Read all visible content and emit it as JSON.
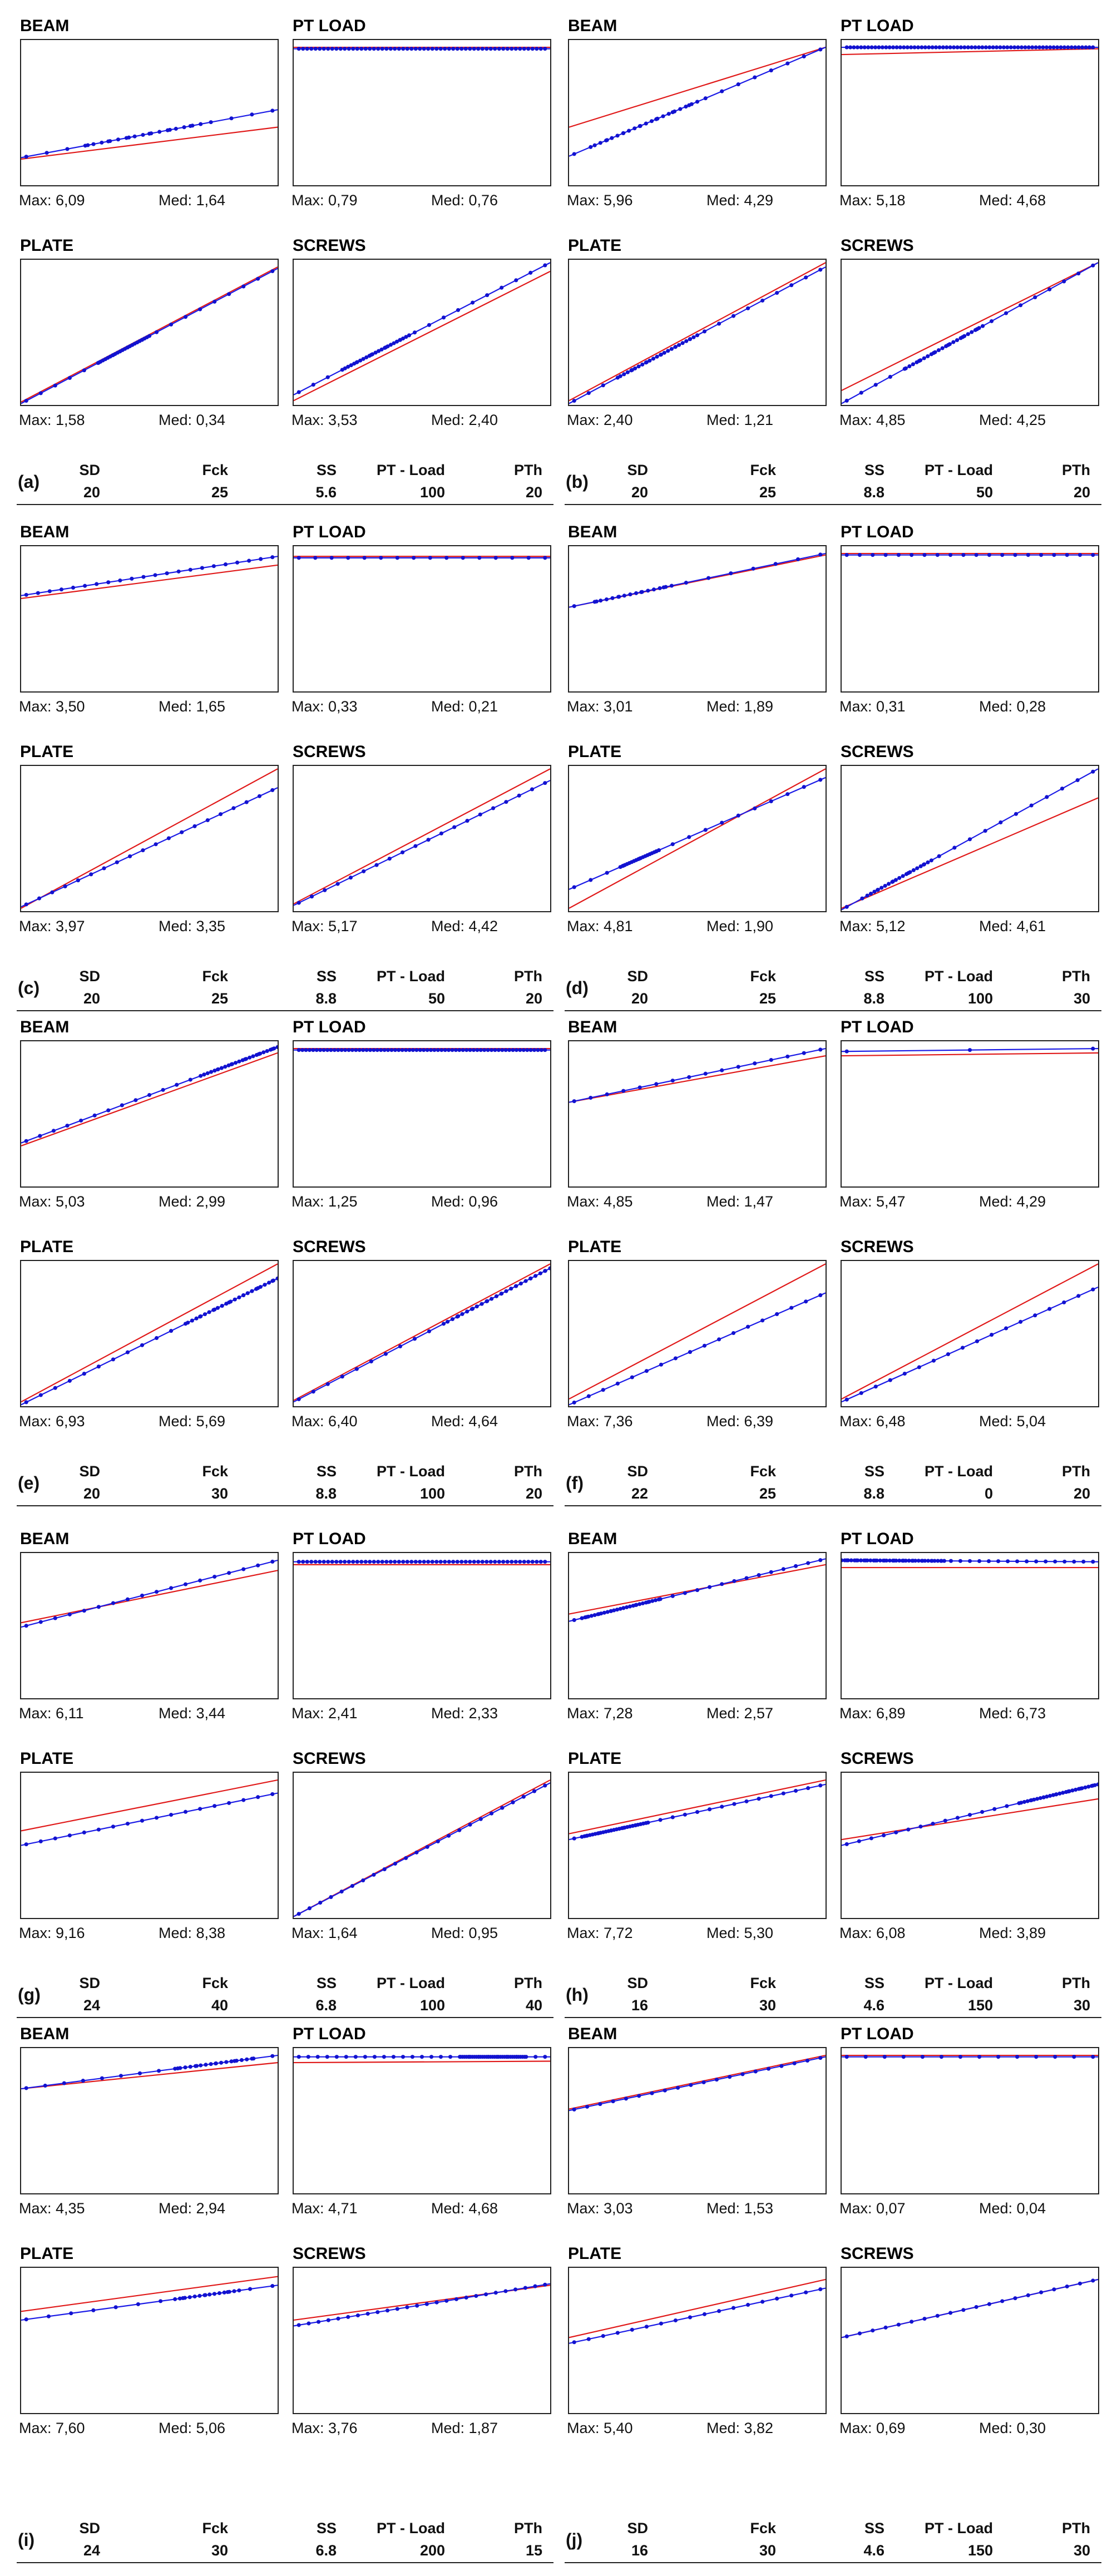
{
  "colors": {
    "fit_line": "#e01818",
    "data_line": "#1a1ae6",
    "marker": "#1212d0",
    "frame": "#222222"
  },
  "param_headers": [
    "SD",
    "Fck",
    "SS",
    "PT - Load",
    "PTh"
  ],
  "max_prefix": "Max:",
  "med_prefix": "Med:",
  "chart_data": [
    {
      "label": "(a)",
      "params": [
        "20",
        "25",
        "5.6",
        "100",
        "20"
      ],
      "subplots": [
        {
          "name": "BEAM",
          "type": "line",
          "max": "6,09",
          "med": "1,64",
          "red": [
            0.82,
            0.6
          ],
          "blue": [
            0.81,
            0.48
          ],
          "npts": 28,
          "dense": [
            0.25,
            0.7
          ]
        },
        {
          "name": "PT LOAD",
          "type": "line",
          "max": "0,79",
          "med": "0,76",
          "red": [
            0.05,
            0.05
          ],
          "blue": [
            0.06,
            0.06
          ],
          "npts": 60,
          "dense": [
            0,
            1
          ]
        },
        {
          "name": "PLATE",
          "type": "line",
          "max": "1,58",
          "med": "0,34",
          "red": [
            0.98,
            0.05
          ],
          "blue": [
            0.99,
            0.06
          ],
          "npts": 40,
          "dense": [
            0.3,
            0.5
          ]
        },
        {
          "name": "SCREWS",
          "type": "line",
          "max": "3,53",
          "med": "2,40",
          "red": [
            0.97,
            0.08
          ],
          "blue": [
            0.93,
            0.02
          ],
          "npts": 40,
          "dense": [
            0.2,
            0.45
          ]
        }
      ]
    },
    {
      "label": "(b)",
      "params": [
        "20",
        "25",
        "8.8",
        "50",
        "20"
      ],
      "subplots": [
        {
          "name": "BEAM",
          "type": "line",
          "max": "5,96",
          "med": "4,29",
          "red": [
            0.6,
            0.05
          ],
          "blue": [
            0.8,
            0.05
          ],
          "npts": 35,
          "dense": [
            0.1,
            0.5
          ]
        },
        {
          "name": "PT LOAD",
          "type": "line",
          "max": "5,18",
          "med": "4,68",
          "red": [
            0.1,
            0.06
          ],
          "blue": [
            0.05,
            0.05
          ],
          "npts": 70,
          "dense": [
            0,
            1
          ]
        },
        {
          "name": "PLATE",
          "type": "line",
          "max": "2,40",
          "med": "1,21",
          "red": [
            0.97,
            0.02
          ],
          "blue": [
            0.99,
            0.05
          ],
          "npts": 40,
          "dense": [
            0.2,
            0.5
          ]
        },
        {
          "name": "SCREWS",
          "type": "line",
          "max": "4,85",
          "med": "4,25",
          "red": [
            0.9,
            0.02
          ],
          "blue": [
            0.99,
            0.02
          ],
          "npts": 40,
          "dense": [
            0.25,
            0.55
          ]
        }
      ]
    },
    {
      "label": "(c)",
      "params": [
        "20",
        "25",
        "8.8",
        "50",
        "20"
      ],
      "subplots": [
        {
          "name": "BEAM",
          "type": "line",
          "max": "3,50",
          "med": "1,65",
          "red": [
            0.36,
            0.13
          ],
          "blue": [
            0.34,
            0.07
          ],
          "npts": 22,
          "dense": [
            0,
            1
          ]
        },
        {
          "name": "PT LOAD",
          "type": "line",
          "max": "0,33",
          "med": "0,21",
          "red": [
            0.07,
            0.07
          ],
          "blue": [
            0.08,
            0.08
          ],
          "npts": 16,
          "dense": [
            0,
            1
          ]
        },
        {
          "name": "PLATE",
          "type": "line",
          "max": "3,97",
          "med": "3,35",
          "red": [
            0.98,
            0.02
          ],
          "blue": [
            0.97,
            0.15
          ],
          "npts": 20,
          "dense": [
            0,
            1
          ]
        },
        {
          "name": "SCREWS",
          "type": "line",
          "max": "5,17",
          "med": "4,42",
          "red": [
            0.95,
            0.02
          ],
          "blue": [
            0.96,
            0.1
          ],
          "npts": 20,
          "dense": [
            0,
            1
          ]
        }
      ]
    },
    {
      "label": "(d)",
      "params": [
        "20",
        "25",
        "8.8",
        "100",
        "30"
      ],
      "subplots": [
        {
          "name": "BEAM",
          "type": "line",
          "max": "3,01",
          "med": "1,89",
          "red": [
            0.42,
            0.06
          ],
          "blue": [
            0.42,
            0.05
          ],
          "npts": 26,
          "dense": [
            0.1,
            0.4
          ]
        },
        {
          "name": "PT LOAD",
          "type": "line",
          "max": "0,31",
          "med": "0,28",
          "red": [
            0.05,
            0.05
          ],
          "blue": [
            0.06,
            0.06
          ],
          "npts": 20,
          "dense": [
            0,
            1
          ]
        },
        {
          "name": "PLATE",
          "type": "line",
          "max": "4,81",
          "med": "1,90",
          "red": [
            0.98,
            0.02
          ],
          "blue": [
            0.85,
            0.08
          ],
          "npts": 34,
          "dense": [
            0.2,
            0.35
          ]
        },
        {
          "name": "SCREWS",
          "type": "line",
          "max": "5,12",
          "med": "4,61",
          "red": [
            0.98,
            0.22
          ],
          "blue": [
            0.99,
            0.02
          ],
          "npts": 36,
          "dense": [
            0.1,
            0.35
          ]
        }
      ]
    },
    {
      "label": "(e)",
      "params": [
        "20",
        "30",
        "8.8",
        "100",
        "20"
      ],
      "subplots": [
        {
          "name": "BEAM",
          "type": "line",
          "max": "5,03",
          "med": "2,99",
          "red": [
            0.72,
            0.08
          ],
          "blue": [
            0.7,
            0.04
          ],
          "npts": 42,
          "dense": [
            0.7,
            1
          ]
        },
        {
          "name": "PT LOAD",
          "type": "line",
          "max": "1,25",
          "med": "0,96",
          "red": [
            0.05,
            0.05
          ],
          "blue": [
            0.06,
            0.06
          ],
          "npts": 70,
          "dense": [
            0,
            1
          ]
        },
        {
          "name": "PLATE",
          "type": "line",
          "max": "6,93",
          "med": "5,69",
          "red": [
            0.97,
            0.02
          ],
          "blue": [
            0.99,
            0.12
          ],
          "npts": 40,
          "dense": [
            0.65,
            1
          ]
        },
        {
          "name": "SCREWS",
          "type": "line",
          "max": "6,40",
          "med": "4,64",
          "red": [
            0.96,
            0.02
          ],
          "blue": [
            0.97,
            0.05
          ],
          "npts": 40,
          "dense": [
            0.6,
            1
          ]
        }
      ]
    },
    {
      "label": "(f)",
      "params": [
        "22",
        "25",
        "8.8",
        "0",
        "20"
      ],
      "subplots": [
        {
          "name": "BEAM",
          "type": "line",
          "max": "4,85",
          "med": "1,47",
          "red": [
            0.42,
            0.1
          ],
          "blue": [
            0.42,
            0.05
          ],
          "npts": 16,
          "dense": [
            0,
            1
          ]
        },
        {
          "name": "PT LOAD",
          "type": "line",
          "max": "5,47",
          "med": "4,29",
          "red": [
            0.1,
            0.08
          ],
          "blue": [
            0.07,
            0.05
          ],
          "npts": 3,
          "dense": [
            0,
            1
          ]
        },
        {
          "name": "PLATE",
          "type": "line",
          "max": "7,36",
          "med": "6,39",
          "red": [
            0.95,
            0.02
          ],
          "blue": [
            0.99,
            0.22
          ],
          "npts": 18,
          "dense": [
            0,
            1
          ]
        },
        {
          "name": "SCREWS",
          "type": "line",
          "max": "6,48",
          "med": "5,04",
          "red": [
            0.95,
            0.02
          ],
          "blue": [
            0.97,
            0.18
          ],
          "npts": 18,
          "dense": [
            0,
            1
          ]
        }
      ]
    },
    {
      "label": "(g)",
      "params": [
        "24",
        "40",
        "6.8",
        "100",
        "40"
      ],
      "subplots": [
        {
          "name": "BEAM",
          "type": "line",
          "max": "6,11",
          "med": "3,44",
          "red": [
            0.48,
            0.12
          ],
          "blue": [
            0.51,
            0.05
          ],
          "npts": 18,
          "dense": [
            0,
            1
          ]
        },
        {
          "name": "PT LOAD",
          "type": "line",
          "max": "2,41",
          "med": "2,33",
          "red": [
            0.08,
            0.08
          ],
          "blue": [
            0.06,
            0.06
          ],
          "npts": 60,
          "dense": [
            0,
            1
          ]
        },
        {
          "name": "PLATE",
          "type": "line",
          "max": "9,16",
          "med": "8,38",
          "red": [
            0.4,
            0.05
          ],
          "blue": [
            0.5,
            0.14
          ],
          "npts": 18,
          "dense": [
            0,
            1
          ]
        },
        {
          "name": "SCREWS",
          "type": "line",
          "max": "1,64",
          "med": "0,95",
          "red": [
            0.99,
            0.05
          ],
          "blue": [
            0.99,
            0.07
          ],
          "npts": 24,
          "dense": [
            0,
            1
          ]
        }
      ]
    },
    {
      "label": "(h)",
      "params": [
        "16",
        "30",
        "4.6",
        "150",
        "30"
      ],
      "subplots": [
        {
          "name": "BEAM",
          "type": "line",
          "max": "7,28",
          "med": "2,57",
          "red": [
            0.42,
            0.08
          ],
          "blue": [
            0.47,
            0.04
          ],
          "npts": 46,
          "dense": [
            0.05,
            0.35
          ]
        },
        {
          "name": "PT LOAD",
          "type": "line",
          "max": "6,89",
          "med": "6,73",
          "red": [
            0.1,
            0.1
          ],
          "blue": [
            0.05,
            0.06
          ],
          "npts": 60,
          "dense": [
            0,
            0.4
          ]
        },
        {
          "name": "PLATE",
          "type": "line",
          "max": "7,72",
          "med": "5,30",
          "red": [
            0.42,
            0.05
          ],
          "blue": [
            0.46,
            0.08
          ],
          "npts": 46,
          "dense": [
            0.05,
            0.3
          ]
        },
        {
          "name": "SCREWS",
          "type": "line",
          "max": "6,08",
          "med": "3,89",
          "red": [
            0.46,
            0.18
          ],
          "blue": [
            0.5,
            0.08
          ],
          "npts": 46,
          "dense": [
            0.7,
            1
          ]
        }
      ]
    },
    {
      "label": "(i)",
      "params": [
        "24",
        "30",
        "6.8",
        "200",
        "15"
      ],
      "subplots": [
        {
          "name": "BEAM",
          "type": "line",
          "max": "4,35",
          "med": "2,94",
          "red": [
            0.28,
            0.1
          ],
          "blue": [
            0.28,
            0.05
          ],
          "npts": 30,
          "dense": [
            0.6,
            0.9
          ]
        },
        {
          "name": "PT LOAD",
          "type": "line",
          "max": "4,71",
          "med": "4,68",
          "red": [
            0.1,
            0.09
          ],
          "blue": [
            0.06,
            0.06
          ],
          "npts": 60,
          "dense": [
            0.65,
            0.9
          ]
        },
        {
          "name": "PLATE",
          "type": "line",
          "max": "7,60",
          "med": "5,06",
          "red": [
            0.3,
            0.06
          ],
          "blue": [
            0.36,
            0.12
          ],
          "npts": 26,
          "dense": [
            0.6,
            0.85
          ]
        },
        {
          "name": "SCREWS",
          "type": "line",
          "max": "3,76",
          "med": "1,87",
          "red": [
            0.36,
            0.12
          ],
          "blue": [
            0.4,
            0.11
          ],
          "npts": 26,
          "dense": [
            0,
            1
          ]
        }
      ]
    },
    {
      "label": "(j)",
      "params": [
        "16",
        "30",
        "4.6",
        "150",
        "30"
      ],
      "subplots": [
        {
          "name": "BEAM",
          "type": "line",
          "max": "3,03",
          "med": "1,53",
          "red": [
            0.42,
            0.05
          ],
          "blue": [
            0.43,
            0.06
          ],
          "npts": 20,
          "dense": [
            0,
            1
          ]
        },
        {
          "name": "PT LOAD",
          "type": "line",
          "max": "0,07",
          "med": "0,04",
          "red": [
            0.05,
            0.05
          ],
          "blue": [
            0.06,
            0.06
          ],
          "npts": 14,
          "dense": [
            0,
            1
          ]
        },
        {
          "name": "PLATE",
          "type": "line",
          "max": "5,40",
          "med": "3,82",
          "red": [
            0.48,
            0.08
          ],
          "blue": [
            0.52,
            0.14
          ],
          "npts": 18,
          "dense": [
            0,
            1
          ]
        },
        {
          "name": "SCREWS",
          "type": "line",
          "max": "0,69",
          "med": "0,30",
          "red": [
            0.48,
            0.08
          ],
          "blue": [
            0.48,
            0.08
          ],
          "npts": 20,
          "dense": [
            0,
            1
          ]
        }
      ]
    }
  ]
}
